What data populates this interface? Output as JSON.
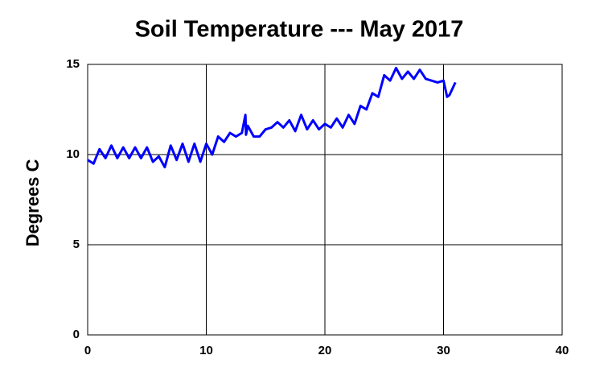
{
  "chart_data": {
    "type": "line",
    "title": "Soil Temperature --- May 2017",
    "y_label": "Degrees C",
    "xlim": [
      0,
      40
    ],
    "xticks": [
      0,
      10,
      20,
      30,
      40
    ],
    "ylim": [
      0,
      15
    ],
    "yticks": [
      0,
      5,
      10,
      15
    ],
    "grid": true,
    "series": [
      {
        "name": "Soil Temperature",
        "color": "#0000ff",
        "x": [
          0,
          0.5,
          1,
          1.5,
          2,
          2.5,
          3,
          3.5,
          4,
          4.5,
          5,
          5.5,
          6,
          6.5,
          7,
          7.5,
          8,
          8.5,
          9,
          9.5,
          10,
          10.5,
          11,
          11.5,
          12,
          12.5,
          13,
          13.3,
          13.35,
          13.5,
          14,
          14.5,
          15,
          15.5,
          16,
          16.5,
          17,
          17.5,
          18,
          18.5,
          19,
          19.5,
          20,
          20.5,
          21,
          21.5,
          22,
          22.5,
          23,
          23.5,
          24,
          24.5,
          25,
          25.5,
          26,
          26.5,
          27,
          27.5,
          28,
          28.5,
          29,
          29.5,
          30,
          30.3,
          30.5,
          31
        ],
        "values": [
          9.7,
          9.5,
          10.3,
          9.8,
          10.5,
          9.8,
          10.4,
          9.8,
          10.4,
          9.8,
          10.4,
          9.6,
          9.9,
          9.3,
          10.5,
          9.7,
          10.6,
          9.6,
          10.6,
          9.6,
          10.6,
          10.0,
          11.0,
          10.7,
          11.2,
          11.0,
          11.2,
          12.2,
          11.1,
          11.6,
          11.0,
          11.0,
          11.4,
          11.5,
          11.8,
          11.5,
          11.9,
          11.3,
          12.2,
          11.4,
          11.9,
          11.4,
          11.7,
          11.5,
          12.0,
          11.5,
          12.2,
          11.7,
          12.7,
          12.5,
          13.4,
          13.2,
          14.4,
          14.1,
          14.8,
          14.2,
          14.6,
          14.2,
          14.7,
          14.2,
          14.1,
          14.0,
          14.1,
          13.2,
          13.3,
          14.0
        ]
      }
    ]
  }
}
